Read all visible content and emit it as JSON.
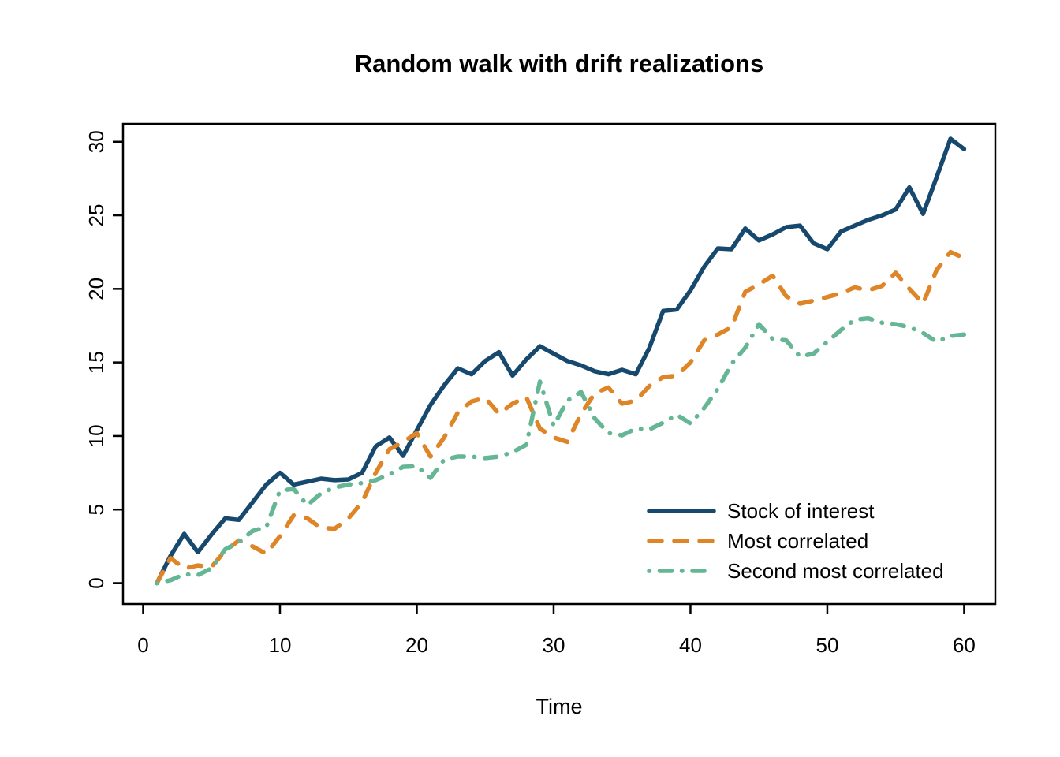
{
  "title": "Random walk with drift realizations",
  "x_axis": {
    "label": "Time",
    "ticks": [
      0,
      10,
      20,
      30,
      40,
      50,
      60
    ]
  },
  "y_axis": {
    "label": "",
    "ticks": [
      0,
      5,
      10,
      15,
      20,
      25,
      30
    ]
  },
  "legend": {
    "position": "bottom-right"
  },
  "chart_data": {
    "type": "line",
    "title": "Random walk with drift realizations",
    "xlabel": "Time",
    "ylabel": "",
    "grid": false,
    "legend_position": "bottom-right",
    "xlim": [
      -1.47,
      62.28
    ],
    "ylim": [
      -1.42,
      31.22
    ],
    "x": [
      1,
      2,
      3,
      4,
      5,
      6,
      7,
      8,
      9,
      10,
      11,
      12,
      13,
      14,
      15,
      16,
      17,
      18,
      19,
      20,
      21,
      22,
      23,
      24,
      25,
      26,
      27,
      28,
      29,
      30,
      31,
      32,
      33,
      34,
      35,
      36,
      37,
      38,
      39,
      40,
      41,
      42,
      43,
      44,
      45,
      46,
      47,
      48,
      49,
      50,
      51,
      52,
      53,
      54,
      55,
      56,
      57,
      58,
      59,
      60
    ],
    "series": [
      {
        "name": "Stock of interest",
        "color": "#17496e",
        "style": "solid",
        "values": [
          0,
          1.85,
          3.35,
          2.1,
          3.3,
          4.4,
          4.3,
          5.5,
          6.7,
          7.5,
          6.7,
          6.9,
          7.1,
          7.0,
          7.05,
          7.5,
          9.3,
          9.9,
          8.65,
          10.4,
          12.1,
          13.45,
          14.6,
          14.2,
          15.1,
          15.7,
          14.1,
          15.2,
          16.1,
          15.6,
          15.1,
          14.8,
          14.4,
          14.2,
          14.5,
          14.2,
          16.0,
          18.5,
          18.6,
          19.9,
          21.5,
          22.75,
          22.7,
          24.1,
          23.3,
          23.7,
          24.2,
          24.3,
          23.1,
          22.7,
          23.9,
          24.3,
          24.7,
          25.0,
          25.4,
          26.9,
          25.1,
          27.6,
          30.2,
          29.5
        ]
      },
      {
        "name": "Most correlated",
        "color": "#de8527",
        "style": "dashed",
        "values": [
          0,
          1.7,
          1.0,
          1.2,
          1.1,
          2.2,
          2.9,
          2.5,
          2.0,
          3.2,
          4.6,
          4.4,
          3.75,
          3.7,
          4.4,
          5.5,
          7.5,
          9.1,
          9.6,
          10.2,
          8.6,
          9.9,
          11.6,
          12.35,
          12.6,
          11.5,
          12.2,
          12.65,
          10.5,
          9.9,
          9.6,
          11.5,
          12.9,
          13.3,
          12.2,
          12.4,
          13.4,
          14.0,
          14.1,
          15.0,
          16.5,
          16.9,
          17.4,
          19.8,
          20.3,
          20.9,
          19.5,
          19.0,
          19.2,
          19.45,
          19.7,
          20.1,
          19.9,
          20.2,
          21.1,
          20.0,
          19.0,
          21.3,
          22.5,
          22.1
        ]
      },
      {
        "name": "Second most correlated",
        "color": "#64b694",
        "style": "dashdot",
        "values": [
          0,
          0.2,
          0.6,
          0.55,
          1.0,
          2.3,
          2.8,
          3.55,
          3.8,
          6.3,
          6.4,
          5.3,
          6.1,
          6.5,
          6.7,
          6.8,
          7.0,
          7.4,
          7.9,
          7.95,
          7.15,
          8.4,
          8.6,
          8.6,
          8.5,
          8.6,
          8.9,
          9.4,
          13.7,
          10.7,
          12.4,
          13.0,
          11.2,
          10.2,
          10.05,
          10.5,
          10.45,
          10.9,
          11.45,
          10.85,
          11.9,
          13.2,
          14.9,
          16.0,
          17.6,
          16.6,
          16.5,
          15.4,
          15.6,
          16.4,
          17.2,
          17.9,
          18.0,
          17.7,
          17.6,
          17.4,
          17.0,
          16.4,
          16.8,
          16.9
        ]
      }
    ]
  }
}
